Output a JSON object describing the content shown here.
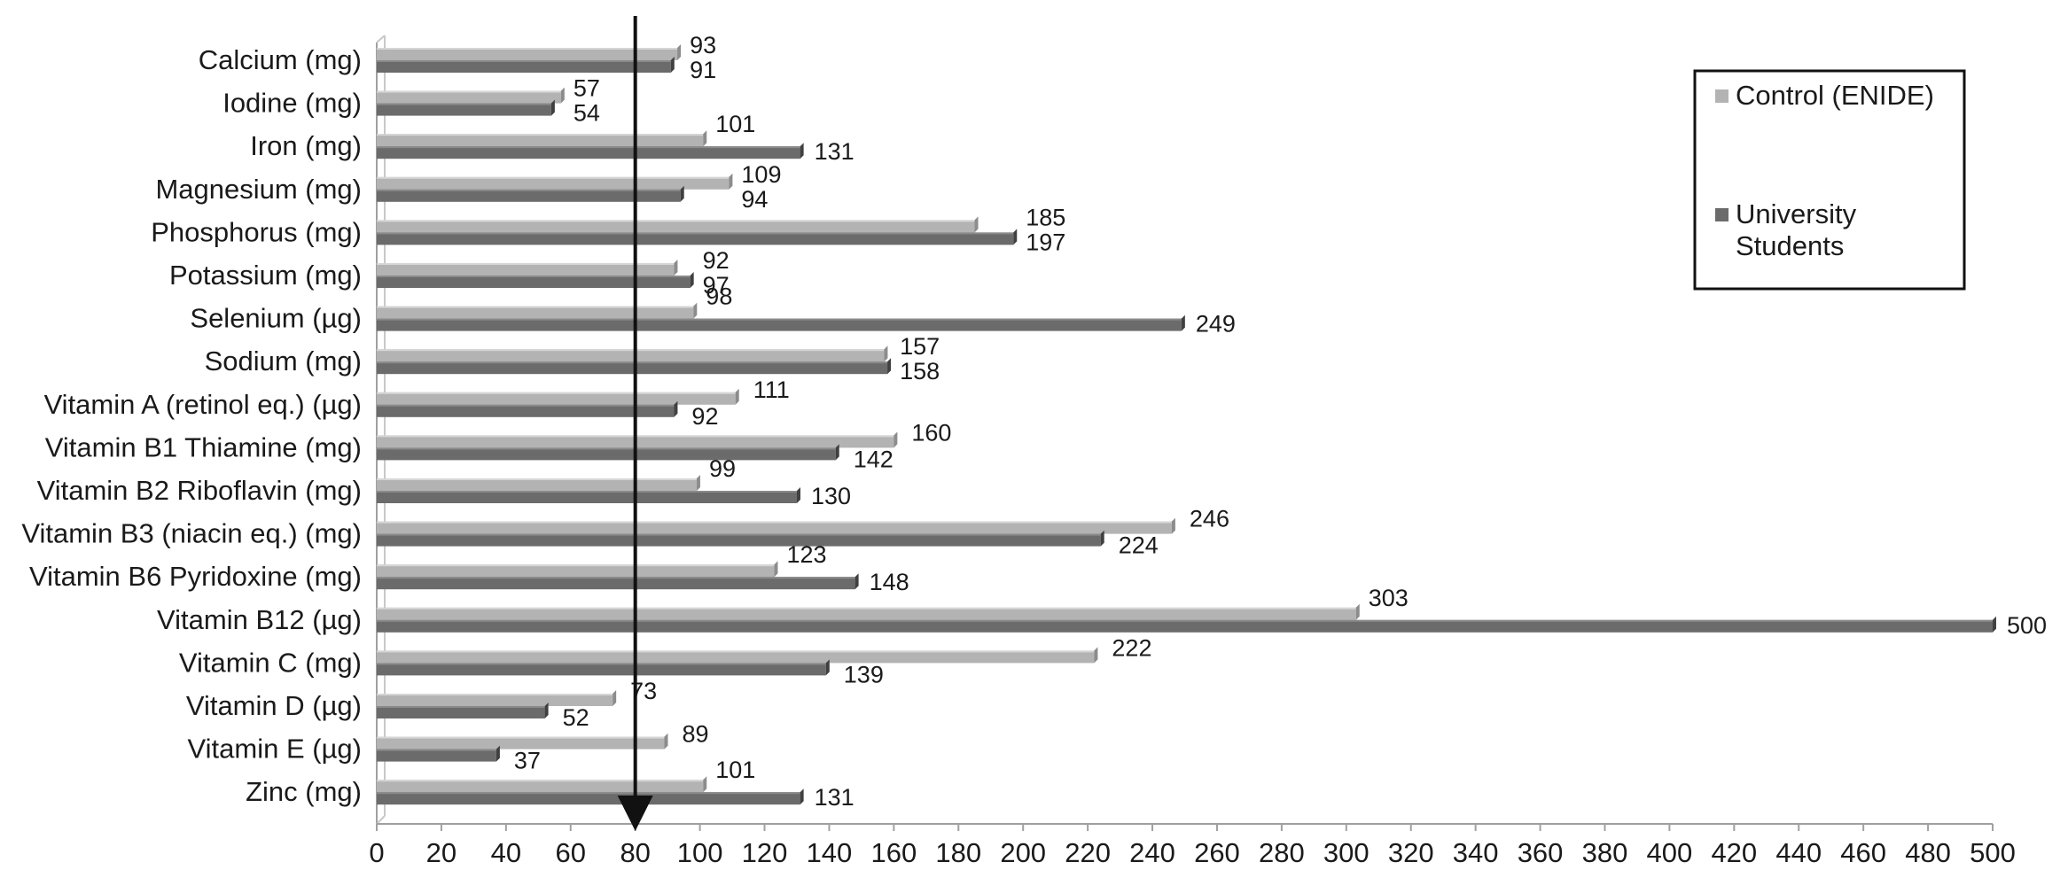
{
  "chart_data": {
    "type": "bar",
    "orientation": "horizontal",
    "categories": [
      "Calcium (mg)",
      "Iodine (mg)",
      "Iron (mg)",
      "Magnesium (mg)",
      "Phosphorus (mg)",
      "Potassium (mg)",
      "Selenium  (µg)",
      "Sodium (mg)",
      "Vitamin A (retinol eq.) (µg)",
      "Vitamin B1 Thiamine (mg)",
      "Vitamin B2 Riboflavin (mg)",
      "Vitamin B3 (niacin eq.) (mg)",
      "Vitamin B6 Pyridoxine (mg)",
      "Vitamin B12 (µg)",
      "Vitamin C (mg)",
      "Vitamin D (µg)",
      "Vitamin E (µg)",
      "Zinc (mg)"
    ],
    "series": [
      {
        "name": "Control (ENIDE)",
        "color": "#b3b3b3",
        "values": [
          93,
          57,
          101,
          109,
          185,
          92,
          98,
          157,
          111,
          160,
          99,
          246,
          123,
          303,
          222,
          73,
          89,
          101
        ],
        "labels": [
          "93",
          "57",
          "101",
          "109",
          "185",
          "92",
          "98",
          "157",
          "111",
          "160",
          "99",
          "246",
          "123",
          "303",
          "222",
          "73",
          "89",
          "101"
        ]
      },
      {
        "name": "University Students",
        "color": "#6b6b6b",
        "values": [
          91,
          54,
          131,
          94,
          197,
          97,
          249,
          158,
          92,
          142,
          130,
          224,
          148,
          500,
          139,
          52,
          37,
          131
        ],
        "labels": [
          "91",
          "54",
          "131",
          "94",
          "197",
          "97",
          "249",
          "158",
          "92",
          "142",
          "130",
          "224",
          "148",
          "500",
          "139",
          "52",
          "37",
          "131"
        ]
      }
    ],
    "xlim": [
      0,
      500
    ],
    "x_ticks": [
      0,
      20,
      40,
      60,
      80,
      100,
      120,
      140,
      160,
      180,
      200,
      220,
      240,
      260,
      280,
      300,
      320,
      340,
      360,
      380,
      400,
      420,
      440,
      460,
      480,
      500
    ],
    "reference_line": {
      "x": 80,
      "style": "arrow",
      "color": "#111111"
    },
    "legend": {
      "position": "top-right",
      "items": [
        {
          "lines": [
            "Control (ENIDE)"
          ]
        },
        {
          "lines": [
            "University",
            "Students"
          ]
        }
      ]
    },
    "grid": false
  }
}
